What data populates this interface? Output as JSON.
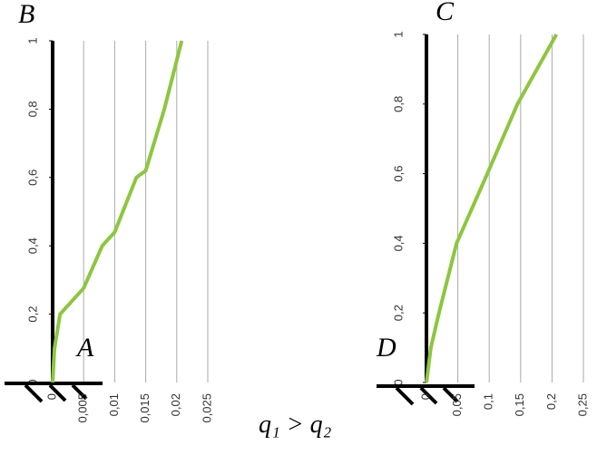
{
  "label": "q₁ > q₂",
  "chart_data": [
    {
      "type": "line",
      "annotations": [
        "B",
        "A"
      ],
      "x": [
        0,
        0.0003,
        0.0012,
        0.005,
        0.008,
        0.01,
        0.0135,
        0.015,
        0.018,
        0.0208
      ],
      "values": [
        0,
        0.1,
        0.2,
        0.276,
        0.4,
        0.44,
        0.6,
        0.62,
        0.8,
        1
      ],
      "color": "#8dc63f",
      "xlim": [
        0,
        0.025
      ],
      "xticks": [
        0,
        {
          "value": 0.005,
          "label": "0,005"
        },
        {
          "value": 0.01,
          "label": "0,01"
        },
        {
          "value": 0.015,
          "label": "0,015"
        },
        {
          "value": 0.02,
          "label": "0,02"
        },
        {
          "value": 0.025,
          "label": "0,025"
        }
      ],
      "ylim": [
        0,
        1
      ],
      "yticks": [
        0,
        {
          "value": 0.2,
          "label": "0,2"
        },
        {
          "value": 0.4,
          "label": "0,4"
        },
        {
          "value": 0.6,
          "label": "0,6"
        },
        {
          "value": 0.8,
          "label": "0,8"
        },
        1
      ],
      "grid": true
    },
    {
      "type": "line",
      "annotations": [
        "C",
        "D"
      ],
      "x": [
        0,
        0.007,
        0.02,
        0.048,
        0.097,
        0.145,
        0.207
      ],
      "values": [
        0,
        0.1,
        0.2,
        0.4,
        0.6,
        0.8,
        1
      ],
      "color": "#8dc63f",
      "xlim": [
        0,
        0.25
      ],
      "xticks": [
        0,
        {
          "value": 0.05,
          "label": "0,05"
        },
        {
          "value": 0.1,
          "label": "0,1"
        },
        {
          "value": 0.15,
          "label": "0,15"
        },
        {
          "value": 0.2,
          "label": "0,2"
        },
        {
          "value": 0.25,
          "label": "0,25"
        }
      ],
      "ylim": [
        0,
        1
      ],
      "yticks": [
        0,
        {
          "value": 0.2,
          "label": "0,2"
        },
        {
          "value": 0.4,
          "label": "0,4"
        },
        {
          "value": 0.6,
          "label": "0,6"
        },
        {
          "value": 0.8,
          "label": "0,8"
        },
        1
      ],
      "grid": true
    }
  ]
}
